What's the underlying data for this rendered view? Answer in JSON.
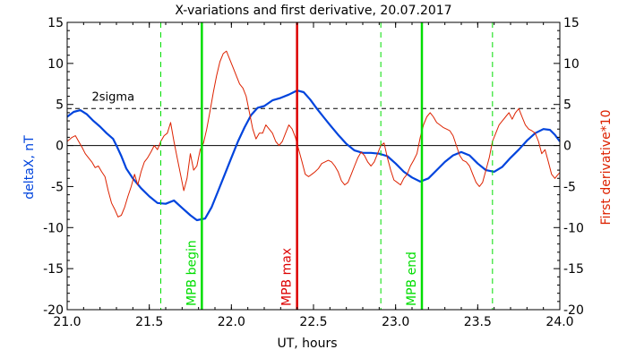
{
  "chart_data": {
    "type": "line",
    "title": "X-variations and first derivative, 20.07.2017",
    "xlabel": "UT, hours",
    "ylabel_left": "deltaX, nT",
    "ylabel_right": "First derivative*10",
    "xlim": [
      21.0,
      24.0
    ],
    "ylim": [
      -20,
      15
    ],
    "x_ticks": [
      21.0,
      21.5,
      22.0,
      22.5,
      23.0,
      23.5,
      24.0
    ],
    "x_tick_labels": [
      "21.0",
      "21.5",
      "22.0",
      "22.5",
      "23.0",
      "23.5",
      "24.0"
    ],
    "y_ticks": [
      -20,
      -15,
      -10,
      -5,
      0,
      5,
      10,
      15
    ],
    "y_tick_labels": [
      "-20",
      "-15",
      "-10",
      "-5",
      "0",
      "5",
      "10",
      "15"
    ],
    "zero_line": 0,
    "sigma_level": 4.5,
    "sigma_label": "2sigma",
    "vertical_markers": [
      {
        "x": 21.57,
        "style": "dashed",
        "color": "#00dd00"
      },
      {
        "x": 21.82,
        "style": "solid",
        "color": "#00dd00",
        "label": "MPB begin"
      },
      {
        "x": 22.4,
        "style": "solid",
        "color": "#dd0000",
        "label": "MPB max"
      },
      {
        "x": 22.91,
        "style": "dashed",
        "color": "#00dd00"
      },
      {
        "x": 23.16,
        "style": "solid",
        "color": "#00dd00",
        "label": "MPB end"
      },
      {
        "x": 23.59,
        "style": "dashed",
        "color": "#00dd00"
      }
    ],
    "series": [
      {
        "color": "#0044dd",
        "points": [
          [
            21.0,
            3.5
          ],
          [
            21.04,
            4.1
          ],
          [
            21.08,
            4.3
          ],
          [
            21.12,
            3.8
          ],
          [
            21.16,
            3.0
          ],
          [
            21.2,
            2.3
          ],
          [
            21.24,
            1.5
          ],
          [
            21.28,
            0.8
          ],
          [
            21.3,
            0.0
          ],
          [
            21.33,
            -1.3
          ],
          [
            21.36,
            -2.8
          ],
          [
            21.4,
            -4.0
          ],
          [
            21.45,
            -5.2
          ],
          [
            21.5,
            -6.2
          ],
          [
            21.55,
            -7.0
          ],
          [
            21.6,
            -7.1
          ],
          [
            21.65,
            -6.7
          ],
          [
            21.7,
            -7.6
          ],
          [
            21.75,
            -8.5
          ],
          [
            21.79,
            -9.1
          ],
          [
            21.84,
            -8.9
          ],
          [
            21.88,
            -7.5
          ],
          [
            21.92,
            -5.5
          ],
          [
            21.96,
            -3.5
          ],
          [
            22.0,
            -1.5
          ],
          [
            22.04,
            0.5
          ],
          [
            22.08,
            2.2
          ],
          [
            22.12,
            3.7
          ],
          [
            22.16,
            4.6
          ],
          [
            22.2,
            4.8
          ],
          [
            22.25,
            5.5
          ],
          [
            22.3,
            5.8
          ],
          [
            22.35,
            6.2
          ],
          [
            22.4,
            6.7
          ],
          [
            22.44,
            6.5
          ],
          [
            22.48,
            5.6
          ],
          [
            22.52,
            4.5
          ],
          [
            22.56,
            3.5
          ],
          [
            22.6,
            2.5
          ],
          [
            22.65,
            1.3
          ],
          [
            22.7,
            0.2
          ],
          [
            22.75,
            -0.6
          ],
          [
            22.8,
            -0.9
          ],
          [
            22.85,
            -0.9
          ],
          [
            22.9,
            -1.0
          ],
          [
            22.95,
            -1.3
          ],
          [
            23.0,
            -2.2
          ],
          [
            23.05,
            -3.2
          ],
          [
            23.1,
            -3.9
          ],
          [
            23.15,
            -4.4
          ],
          [
            23.2,
            -4.0
          ],
          [
            23.25,
            -3.0
          ],
          [
            23.3,
            -2.0
          ],
          [
            23.35,
            -1.2
          ],
          [
            23.4,
            -0.8
          ],
          [
            23.45,
            -1.2
          ],
          [
            23.5,
            -2.2
          ],
          [
            23.55,
            -3.0
          ],
          [
            23.6,
            -3.2
          ],
          [
            23.65,
            -2.6
          ],
          [
            23.7,
            -1.5
          ],
          [
            23.75,
            -0.5
          ],
          [
            23.8,
            0.6
          ],
          [
            23.85,
            1.5
          ],
          [
            23.9,
            2.0
          ],
          [
            23.94,
            1.9
          ],
          [
            23.97,
            1.3
          ],
          [
            24.0,
            0.5
          ]
        ]
      },
      {
        "color": "#dd2200",
        "points": [
          [
            21.0,
            0.5
          ],
          [
            21.03,
            1.0
          ],
          [
            21.05,
            1.2
          ],
          [
            21.07,
            0.5
          ],
          [
            21.09,
            -0.2
          ],
          [
            21.11,
            -1.0
          ],
          [
            21.13,
            -1.5
          ],
          [
            21.15,
            -2.0
          ],
          [
            21.17,
            -2.7
          ],
          [
            21.19,
            -2.5
          ],
          [
            21.21,
            -3.2
          ],
          [
            21.23,
            -3.8
          ],
          [
            21.25,
            -5.5
          ],
          [
            21.27,
            -7.0
          ],
          [
            21.29,
            -7.8
          ],
          [
            21.31,
            -8.7
          ],
          [
            21.33,
            -8.5
          ],
          [
            21.35,
            -7.5
          ],
          [
            21.37,
            -6.2
          ],
          [
            21.39,
            -5.0
          ],
          [
            21.41,
            -3.5
          ],
          [
            21.43,
            -4.8
          ],
          [
            21.45,
            -3.2
          ],
          [
            21.47,
            -2.0
          ],
          [
            21.49,
            -1.5
          ],
          [
            21.51,
            -0.8
          ],
          [
            21.53,
            0.0
          ],
          [
            21.55,
            -0.5
          ],
          [
            21.57,
            0.5
          ],
          [
            21.59,
            1.2
          ],
          [
            21.61,
            1.5
          ],
          [
            21.63,
            2.8
          ],
          [
            21.65,
            0.5
          ],
          [
            21.67,
            -1.5
          ],
          [
            21.69,
            -3.5
          ],
          [
            21.71,
            -5.5
          ],
          [
            21.73,
            -4.0
          ],
          [
            21.75,
            -1.0
          ],
          [
            21.77,
            -3.0
          ],
          [
            21.79,
            -2.5
          ],
          [
            21.81,
            -0.5
          ],
          [
            21.83,
            0.3
          ],
          [
            21.85,
            2.0
          ],
          [
            21.87,
            4.2
          ],
          [
            21.89,
            6.5
          ],
          [
            21.91,
            8.5
          ],
          [
            21.93,
            10.2
          ],
          [
            21.95,
            11.2
          ],
          [
            21.97,
            11.5
          ],
          [
            21.99,
            10.5
          ],
          [
            22.01,
            9.5
          ],
          [
            22.03,
            8.5
          ],
          [
            22.05,
            7.5
          ],
          [
            22.07,
            7.0
          ],
          [
            22.09,
            6.0
          ],
          [
            22.11,
            4.0
          ],
          [
            22.13,
            2.0
          ],
          [
            22.15,
            0.8
          ],
          [
            22.17,
            1.5
          ],
          [
            22.19,
            1.5
          ],
          [
            22.21,
            2.5
          ],
          [
            22.23,
            2.0
          ],
          [
            22.25,
            1.5
          ],
          [
            22.27,
            0.5
          ],
          [
            22.29,
            0.0
          ],
          [
            22.31,
            0.5
          ],
          [
            22.33,
            1.5
          ],
          [
            22.35,
            2.5
          ],
          [
            22.37,
            2.0
          ],
          [
            22.39,
            1.0
          ],
          [
            22.41,
            -0.5
          ],
          [
            22.43,
            -2.0
          ],
          [
            22.45,
            -3.5
          ],
          [
            22.47,
            -3.8
          ],
          [
            22.49,
            -3.5
          ],
          [
            22.51,
            -3.2
          ],
          [
            22.53,
            -2.8
          ],
          [
            22.55,
            -2.2
          ],
          [
            22.57,
            -2.0
          ],
          [
            22.59,
            -1.8
          ],
          [
            22.61,
            -2.0
          ],
          [
            22.63,
            -2.5
          ],
          [
            22.65,
            -3.2
          ],
          [
            22.67,
            -4.3
          ],
          [
            22.69,
            -4.8
          ],
          [
            22.71,
            -4.5
          ],
          [
            22.73,
            -3.5
          ],
          [
            22.75,
            -2.5
          ],
          [
            22.77,
            -1.5
          ],
          [
            22.79,
            -0.8
          ],
          [
            22.81,
            -1.2
          ],
          [
            22.83,
            -2.0
          ],
          [
            22.85,
            -2.5
          ],
          [
            22.87,
            -2.0
          ],
          [
            22.89,
            -1.0
          ],
          [
            22.91,
            0.0
          ],
          [
            22.93,
            0.3
          ],
          [
            22.95,
            -1.5
          ],
          [
            22.97,
            -3.0
          ],
          [
            22.99,
            -4.2
          ],
          [
            23.01,
            -4.5
          ],
          [
            23.03,
            -4.8
          ],
          [
            23.05,
            -4.0
          ],
          [
            23.07,
            -3.5
          ],
          [
            23.09,
            -2.5
          ],
          [
            23.11,
            -1.8
          ],
          [
            23.13,
            -1.0
          ],
          [
            23.15,
            1.0
          ],
          [
            23.17,
            2.5
          ],
          [
            23.19,
            3.5
          ],
          [
            23.21,
            4.0
          ],
          [
            23.23,
            3.5
          ],
          [
            23.25,
            2.8
          ],
          [
            23.27,
            2.5
          ],
          [
            23.29,
            2.2
          ],
          [
            23.31,
            2.0
          ],
          [
            23.33,
            1.8
          ],
          [
            23.35,
            1.2
          ],
          [
            23.37,
            0.0
          ],
          [
            23.39,
            -1.2
          ],
          [
            23.41,
            -1.8
          ],
          [
            23.43,
            -2.0
          ],
          [
            23.45,
            -2.5
          ],
          [
            23.47,
            -3.5
          ],
          [
            23.49,
            -4.5
          ],
          [
            23.51,
            -5.0
          ],
          [
            23.53,
            -4.5
          ],
          [
            23.55,
            -3.0
          ],
          [
            23.57,
            -1.5
          ],
          [
            23.59,
            0.5
          ],
          [
            23.61,
            1.5
          ],
          [
            23.63,
            2.5
          ],
          [
            23.65,
            3.0
          ],
          [
            23.67,
            3.5
          ],
          [
            23.69,
            4.0
          ],
          [
            23.71,
            3.2
          ],
          [
            23.73,
            4.0
          ],
          [
            23.75,
            4.5
          ],
          [
            23.77,
            3.5
          ],
          [
            23.79,
            2.5
          ],
          [
            23.81,
            2.0
          ],
          [
            23.83,
            1.8
          ],
          [
            23.85,
            1.5
          ],
          [
            23.87,
            0.5
          ],
          [
            23.89,
            -1.0
          ],
          [
            23.91,
            -0.5
          ],
          [
            23.93,
            -2.0
          ],
          [
            23.95,
            -3.5
          ],
          [
            23.97,
            -4.0
          ],
          [
            23.99,
            -3.5
          ],
          [
            24.0,
            -3.3
          ]
        ]
      }
    ]
  }
}
